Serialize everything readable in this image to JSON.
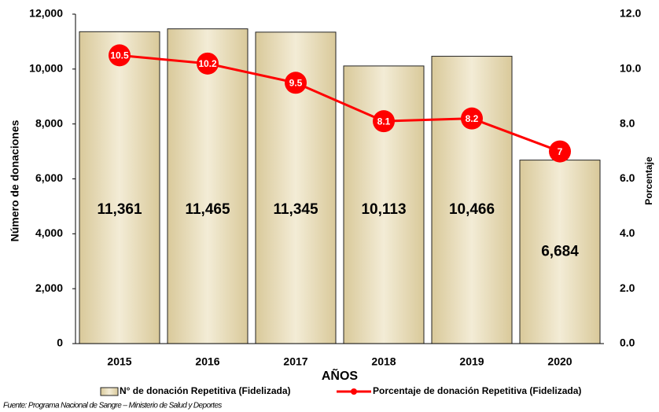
{
  "chart_data": {
    "type": "bar",
    "categories": [
      "2015",
      "2016",
      "2017",
      "2018",
      "2019",
      "2020"
    ],
    "series": [
      {
        "name": "N° de donación Repetitiva (Fidelizada)",
        "type": "bar",
        "color": "#e9dfbf",
        "values": [
          11361,
          11465,
          11345,
          10113,
          10466,
          6684
        ],
        "value_labels": [
          "11,361",
          "11,465",
          "11,345",
          "10,113",
          "10,466",
          "6,684"
        ]
      },
      {
        "name": "Porcentaje de donación Repetitiva (Fidelizada)",
        "type": "line",
        "axis": "y2",
        "color": "#ff0000",
        "values": [
          10.5,
          10.2,
          9.5,
          8.1,
          8.2,
          7
        ]
      }
    ],
    "x_label": "AÑOS",
    "y_label": "Número de donaciones",
    "y2_label": "Porcentaje",
    "ylim": [
      0,
      12000
    ],
    "yticks": [
      0,
      {
        "value": 2000,
        "label": "2,000"
      },
      {
        "value": 4000,
        "label": "4,000"
      },
      {
        "value": 6000,
        "label": "6,000"
      },
      {
        "value": 8000,
        "label": "8,000"
      },
      {
        "value": 10000,
        "label": "10,000"
      },
      {
        "value": 12000,
        "label": "12,000"
      }
    ],
    "y2lim": [
      0,
      12
    ],
    "y2ticks": [
      {
        "value": 0,
        "label": "0.0"
      },
      {
        "value": 2,
        "label": "2.0"
      },
      {
        "value": 4,
        "label": "4.0"
      },
      {
        "value": 6,
        "label": "6.0"
      },
      {
        "value": 8,
        "label": "8.0"
      },
      {
        "value": 10,
        "label": "10.0"
      },
      {
        "value": 12,
        "label": "12.0"
      }
    ],
    "legend": "bottom",
    "source": "Fuente: Programa Nacional de Sangre – Ministerio de Salud y Deportes"
  }
}
